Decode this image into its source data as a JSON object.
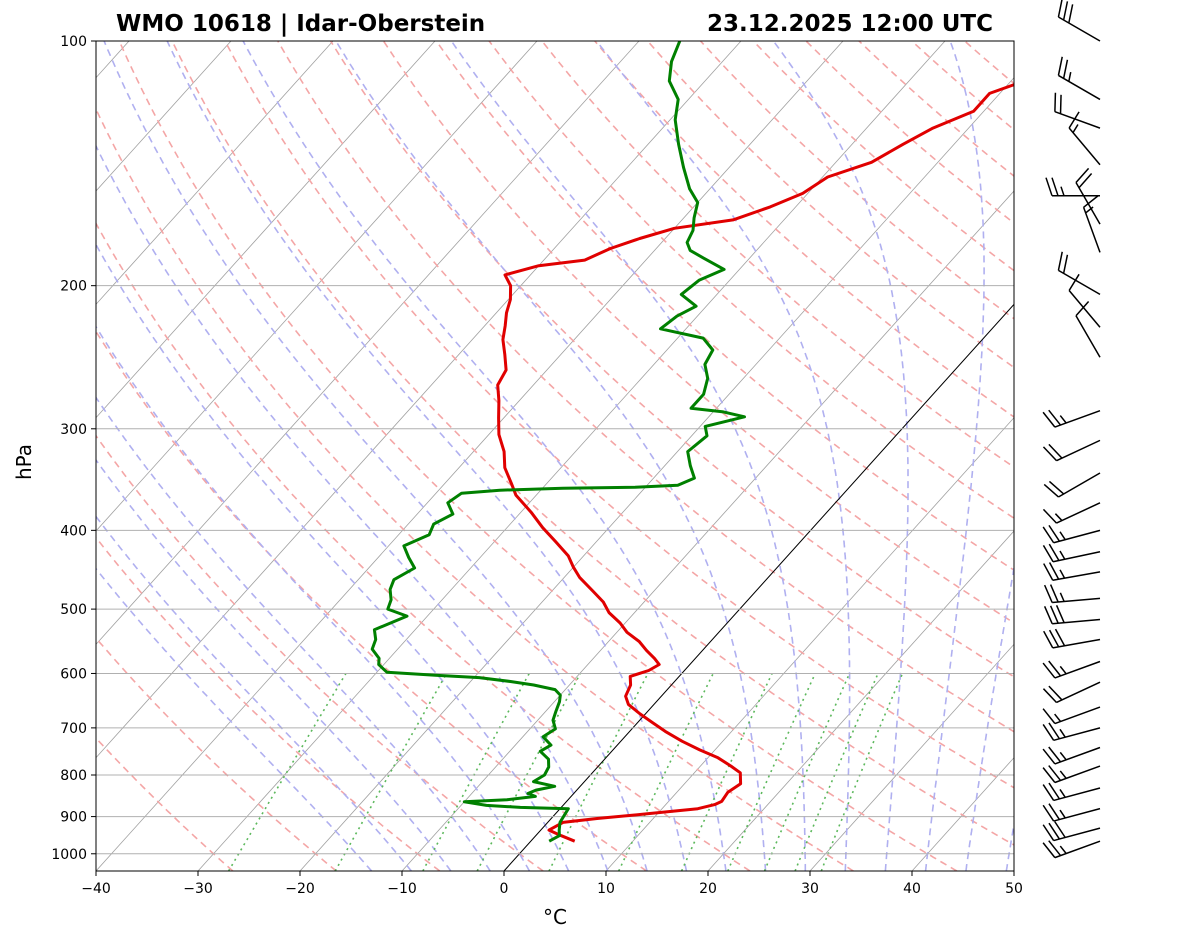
{
  "chart_data": {
    "type": "skew-t",
    "title_left": "WMO 10618 | Idar-Oberstein",
    "title_right": "23.12.2025 12:00 UTC",
    "xlabel": "°C",
    "ylabel": "hPa",
    "x_ticks": [
      "−40",
      "−30",
      "−20",
      "−10",
      "0",
      "10",
      "20",
      "30",
      "40",
      "50"
    ],
    "x_tick_values": [
      -40,
      -30,
      -20,
      -10,
      0,
      10,
      20,
      30,
      40,
      50
    ],
    "y_ticks": [
      "100",
      "200",
      "300",
      "400",
      "500",
      "600",
      "700",
      "800",
      "900",
      "1000"
    ],
    "y_tick_values": [
      100,
      200,
      300,
      400,
      500,
      600,
      700,
      800,
      900,
      1000
    ],
    "xlim": [
      -40,
      50
    ],
    "ylim": [
      1050,
      100
    ],
    "y_scale": "log",
    "grid": true,
    "colors": {
      "temperature": "#e00000",
      "dewpoint": "#008000",
      "dry_adiabats": "#f4a6a6",
      "moist_adiabats": "#b0b0f0",
      "mixing_ratio": "#5cb85c",
      "isotherms": "#a0a0a0",
      "zero_isotherm": "#000000",
      "gridlines": "#b0b0b0",
      "wind_barbs": "#000000"
    },
    "series": [
      {
        "name": "temperature",
        "points": [
          [
            4.3,
            965
          ],
          [
            2.5,
            950
          ],
          [
            0.8,
            935
          ],
          [
            1.5,
            915
          ],
          [
            4.5,
            905
          ],
          [
            9.0,
            893
          ],
          [
            13.5,
            880
          ],
          [
            14.8,
            870
          ],
          [
            15.2,
            862
          ],
          [
            15.0,
            840
          ],
          [
            15.5,
            820
          ],
          [
            14.5,
            795
          ],
          [
            13.0,
            780
          ],
          [
            11.0,
            762
          ],
          [
            8.5,
            745
          ],
          [
            6.0,
            727
          ],
          [
            3.5,
            707
          ],
          [
            1.5,
            690
          ],
          [
            -0.5,
            673
          ],
          [
            -2.5,
            655
          ],
          [
            -3.5,
            640
          ],
          [
            -4.0,
            620
          ],
          [
            -4.8,
            605
          ],
          [
            -3.5,
            595
          ],
          [
            -3.0,
            585
          ],
          [
            -4.0,
            575
          ],
          [
            -5.5,
            562
          ],
          [
            -7.0,
            548
          ],
          [
            -9.0,
            534
          ],
          [
            -10.5,
            520
          ],
          [
            -12.5,
            505
          ],
          [
            -14.0,
            490
          ],
          [
            -16.0,
            475
          ],
          [
            -18.5,
            457
          ],
          [
            -20.0,
            444
          ],
          [
            -21.5,
            430
          ],
          [
            -24.0,
            413
          ],
          [
            -26.5,
            397
          ],
          [
            -29.0,
            380
          ],
          [
            -32.0,
            362
          ],
          [
            -33.5,
            350
          ],
          [
            -35.5,
            335
          ],
          [
            -37.0,
            320
          ],
          [
            -39.0,
            305
          ],
          [
            -40.5,
            291
          ],
          [
            -42.0,
            277
          ],
          [
            -43.5,
            265
          ],
          [
            -44.0,
            254
          ],
          [
            -45.5,
            243
          ],
          [
            -47.0,
            233
          ],
          [
            -48.0,
            224
          ],
          [
            -49.0,
            216
          ],
          [
            -49.8,
            208
          ],
          [
            -51.0,
            200
          ],
          [
            -52.5,
            194
          ],
          [
            -50.0,
            189
          ],
          [
            -46.0,
            186
          ],
          [
            -44.5,
            180
          ],
          [
            -42.5,
            175
          ],
          [
            -40.0,
            170
          ],
          [
            -35.0,
            166
          ],
          [
            -32.5,
            160
          ],
          [
            -30.5,
            154
          ],
          [
            -29.5,
            147
          ],
          [
            -26.5,
            141
          ],
          [
            -25.0,
            134
          ],
          [
            -23.5,
            128
          ],
          [
            -21.0,
            122
          ],
          [
            -21.0,
            116
          ],
          [
            -17.5,
            110
          ],
          [
            -16.0,
            105
          ],
          [
            -14.5,
            100
          ]
        ]
      },
      {
        "name": "dewpoint",
        "points": [
          [
            1.8,
            965
          ],
          [
            2.3,
            950
          ],
          [
            1.8,
            935
          ],
          [
            1.2,
            915
          ],
          [
            0.8,
            880
          ],
          [
            -4.0,
            877
          ],
          [
            -7.5,
            872
          ],
          [
            -10.0,
            863
          ],
          [
            -6.0,
            858
          ],
          [
            -3.5,
            850
          ],
          [
            -4.5,
            843
          ],
          [
            -4.0,
            835
          ],
          [
            -2.5,
            826
          ],
          [
            -5.0,
            815
          ],
          [
            -4.5,
            800
          ],
          [
            -4.8,
            782
          ],
          [
            -5.5,
            765
          ],
          [
            -7.0,
            748
          ],
          [
            -6.5,
            735
          ],
          [
            -8.0,
            718
          ],
          [
            -7.5,
            702
          ],
          [
            -8.5,
            685
          ],
          [
            -9.0,
            668
          ],
          [
            -9.5,
            650
          ],
          [
            -10.0,
            638
          ],
          [
            -11.0,
            628
          ],
          [
            -13.5,
            620
          ],
          [
            -16.0,
            614
          ],
          [
            -19.5,
            607
          ],
          [
            -24.0,
            603
          ],
          [
            -29.0,
            598
          ],
          [
            -30.5,
            585
          ],
          [
            -31.0,
            575
          ],
          [
            -32.5,
            560
          ],
          [
            -33.0,
            545
          ],
          [
            -34.0,
            530
          ],
          [
            -32.0,
            510
          ],
          [
            -34.5,
            500
          ],
          [
            -35.0,
            487
          ],
          [
            -36.0,
            473
          ],
          [
            -36.5,
            460
          ],
          [
            -35.5,
            445
          ],
          [
            -37.0,
            432
          ],
          [
            -38.5,
            418
          ],
          [
            -37.0,
            405
          ],
          [
            -37.5,
            393
          ],
          [
            -36.5,
            382
          ],
          [
            -38.0,
            370
          ],
          [
            -37.5,
            360
          ],
          [
            -34.0,
            357
          ],
          [
            -28.0,
            355
          ],
          [
            -21.0,
            354
          ],
          [
            -17.0,
            352
          ],
          [
            -16.0,
            345
          ],
          [
            -17.5,
            333
          ],
          [
            -19.0,
            320
          ],
          [
            -18.5,
            306
          ],
          [
            -19.5,
            298
          ],
          [
            -16.5,
            290
          ],
          [
            -19.0,
            286
          ],
          [
            -22.5,
            283
          ],
          [
            -22.5,
            272
          ],
          [
            -23.5,
            260
          ],
          [
            -25.0,
            250
          ],
          [
            -25.5,
            240
          ],
          [
            -27.5,
            232
          ],
          [
            -32.5,
            226
          ],
          [
            -32.0,
            218
          ],
          [
            -31.0,
            212
          ],
          [
            -33.5,
            205
          ],
          [
            -33.0,
            197
          ],
          [
            -31.5,
            191
          ],
          [
            -34.5,
            185
          ],
          [
            -36.5,
            181
          ],
          [
            -37.5,
            177
          ],
          [
            -38.0,
            171
          ],
          [
            -39.0,
            165
          ],
          [
            -40.0,
            158
          ],
          [
            -42.0,
            152
          ],
          [
            -44.5,
            143
          ],
          [
            -47.0,
            134
          ],
          [
            -49.5,
            125
          ],
          [
            -51.0,
            118
          ],
          [
            -53.5,
            112
          ],
          [
            -55.0,
            106
          ],
          [
            -56.0,
            100
          ]
        ]
      }
    ],
    "wind_barbs": [
      {
        "p": 100,
        "dir": 300,
        "kt": 30
      },
      {
        "p": 118,
        "dir": 300,
        "kt": 25
      },
      {
        "p": 128,
        "dir": 290,
        "kt": 20
      },
      {
        "p": 142,
        "dir": 320,
        "kt": 15
      },
      {
        "p": 155,
        "dir": 270,
        "kt": 25
      },
      {
        "p": 168,
        "dir": 330,
        "kt": 20
      },
      {
        "p": 182,
        "dir": 340,
        "kt": 15
      },
      {
        "p": 205,
        "dir": 300,
        "kt": 20
      },
      {
        "p": 225,
        "dir": 320,
        "kt": 10
      },
      {
        "p": 245,
        "dir": 330,
        "kt": 10
      },
      {
        "p": 285,
        "dir": 250,
        "kt": 25
      },
      {
        "p": 310,
        "dir": 245,
        "kt": 20
      },
      {
        "p": 340,
        "dir": 240,
        "kt": 20
      },
      {
        "p": 370,
        "dir": 245,
        "kt": 15
      },
      {
        "p": 400,
        "dir": 255,
        "kt": 25
      },
      {
        "p": 425,
        "dir": 258,
        "kt": 25
      },
      {
        "p": 450,
        "dir": 260,
        "kt": 25
      },
      {
        "p": 485,
        "dir": 265,
        "kt": 25
      },
      {
        "p": 515,
        "dir": 265,
        "kt": 30
      },
      {
        "p": 545,
        "dir": 260,
        "kt": 30
      },
      {
        "p": 580,
        "dir": 250,
        "kt": 25
      },
      {
        "p": 615,
        "dir": 245,
        "kt": 20
      },
      {
        "p": 660,
        "dir": 250,
        "kt": 15
      },
      {
        "p": 700,
        "dir": 255,
        "kt": 25
      },
      {
        "p": 740,
        "dir": 250,
        "kt": 25
      },
      {
        "p": 780,
        "dir": 250,
        "kt": 25
      },
      {
        "p": 830,
        "dir": 255,
        "kt": 25
      },
      {
        "p": 880,
        "dir": 255,
        "kt": 25
      },
      {
        "p": 930,
        "dir": 255,
        "kt": 30
      },
      {
        "p": 965,
        "dir": 250,
        "kt": 25
      }
    ]
  }
}
